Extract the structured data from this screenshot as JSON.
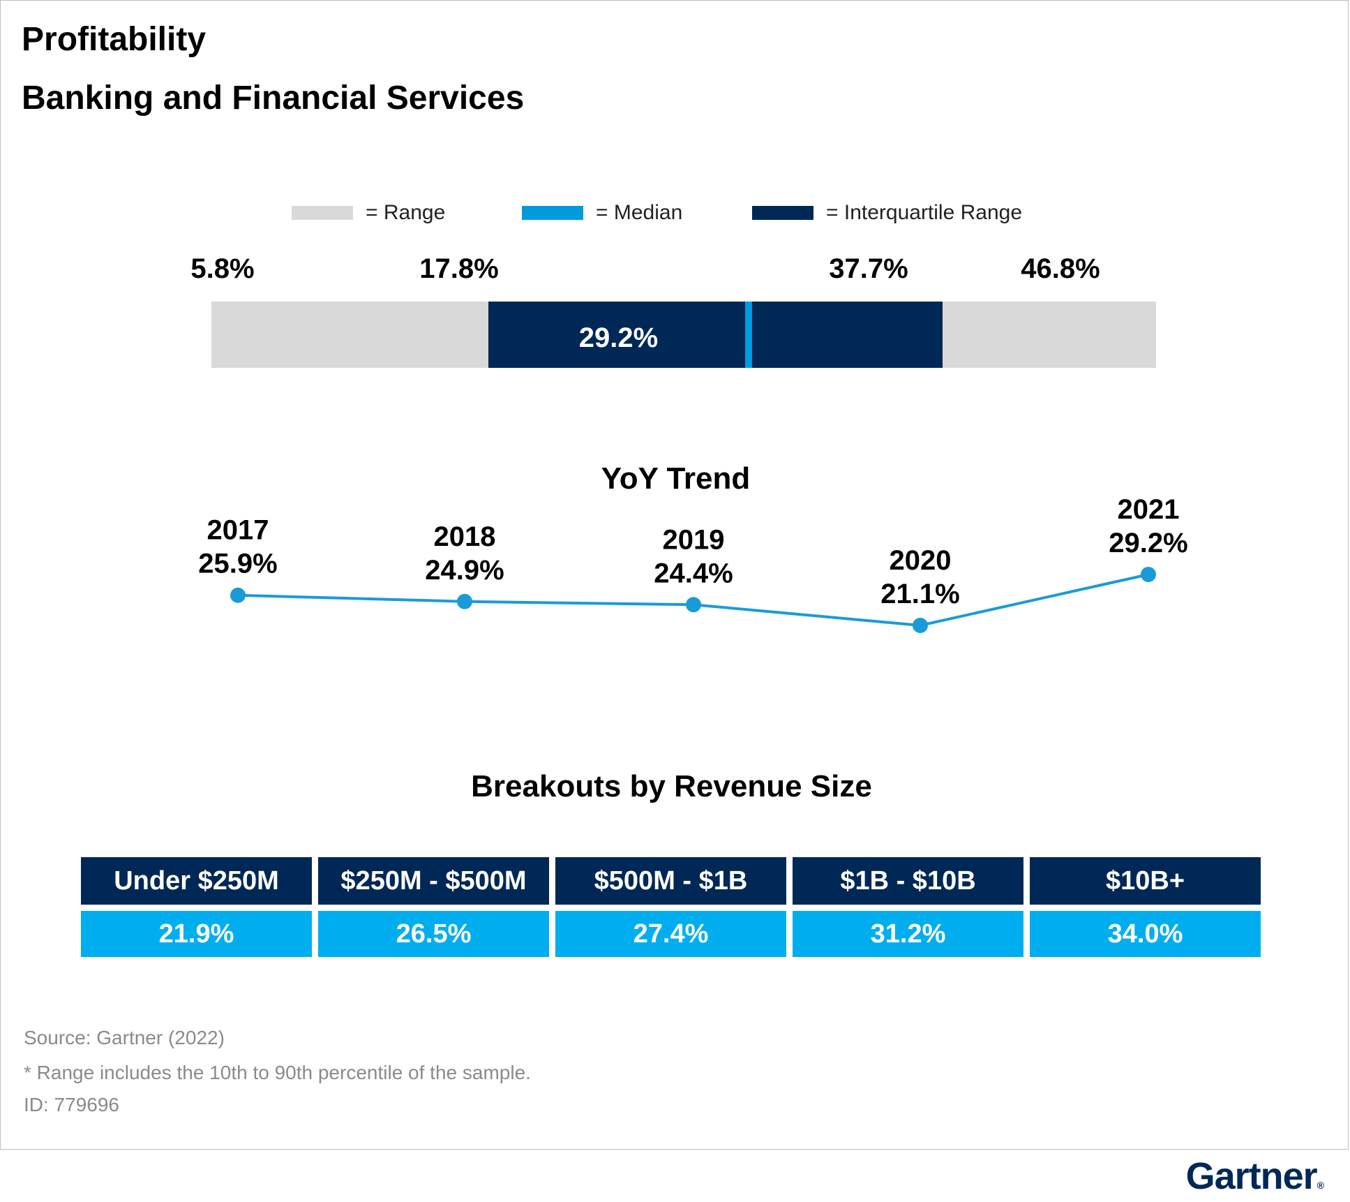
{
  "header": {
    "title": "Profitability",
    "subtitle": "Banking and Financial Services"
  },
  "legend": {
    "range": {
      "label": "= Range",
      "color": "#d9d9d9"
    },
    "median": {
      "label": "= Median",
      "color": "#009bde"
    },
    "iqr": {
      "label": "= Interquartile  Range",
      "color": "#002856"
    }
  },
  "chart_data": [
    {
      "type": "bar",
      "min": 5.8,
      "q1": 17.8,
      "median": 29.2,
      "q3": 37.7,
      "max": 46.8,
      "labels": {
        "min": "5.8%",
        "q1": "17.8%",
        "median": "29.2%",
        "q3": "37.7%",
        "max": "46.8%"
      }
    },
    {
      "type": "line",
      "title": "YoY Trend",
      "x": [
        "2017",
        "2018",
        "2019",
        "2020",
        "2021"
      ],
      "values": [
        25.9,
        24.9,
        24.4,
        21.1,
        29.2
      ],
      "value_labels": [
        "25.9%",
        "24.9%",
        "24.4%",
        "21.1%",
        "29.2%"
      ],
      "line_color": "#1a9bd7"
    },
    {
      "type": "table",
      "title": "Breakouts by Revenue Size",
      "categories": [
        "Under $250M",
        "$250M - $500M",
        "$500M - $1B",
        "$1B - $10B",
        "$10B+"
      ],
      "values": [
        21.9,
        26.5,
        27.4,
        31.2,
        34.0
      ],
      "value_labels": [
        "21.9%",
        "26.5%",
        "27.4%",
        "31.2%",
        "34.0%"
      ]
    }
  ],
  "footer": {
    "source": "Source: Gartner (2022)",
    "note": "* Range includes the 10th to 90th percentile of the sample.",
    "id": "ID: 779696",
    "brand": "Gartner",
    "brand_mark": "®"
  }
}
